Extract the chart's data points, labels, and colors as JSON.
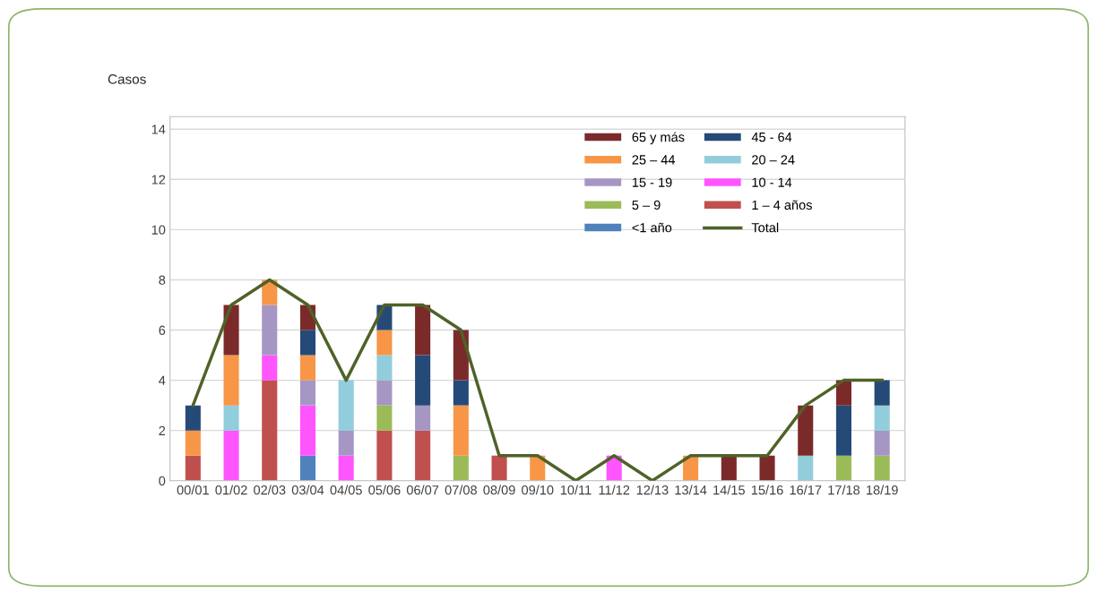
{
  "chart_data": {
    "type": "bar",
    "stacked": true,
    "ylabel": "Casos",
    "categories": [
      "00/01",
      "01/02",
      "02/03",
      "03/04",
      "04/05",
      "05/06",
      "06/07",
      "07/08",
      "08/09",
      "09/10",
      "10/11",
      "11/12",
      "12/13",
      "13/14",
      "14/15",
      "15/16",
      "16/17",
      "17/18",
      "18/19"
    ],
    "series": [
      {
        "name": "<1 año",
        "color": "#4f81bd",
        "values": [
          0,
          0,
          0,
          1,
          0,
          0,
          0,
          0,
          0,
          0,
          0,
          0,
          0,
          0,
          0,
          0,
          0,
          0,
          0
        ]
      },
      {
        "name": "1 – 4 años",
        "color": "#c0504d",
        "values": [
          1,
          0,
          4,
          0,
          0,
          2,
          2,
          0,
          1,
          0,
          0,
          0,
          0,
          0,
          0,
          0,
          0,
          0,
          0
        ]
      },
      {
        "name": "5 – 9",
        "color": "#9bbb59",
        "values": [
          0,
          0,
          0,
          0,
          0,
          1,
          0,
          1,
          0,
          0,
          0,
          0,
          0,
          0,
          0,
          0,
          0,
          1,
          1
        ]
      },
      {
        "name": "10 - 14",
        "color": "#ff55ff",
        "values": [
          0,
          2,
          1,
          2,
          1,
          0,
          0,
          0,
          0,
          0,
          0,
          1,
          0,
          0,
          0,
          0,
          0,
          0,
          0
        ]
      },
      {
        "name": "15 - 19",
        "color": "#a696c4",
        "values": [
          0,
          0,
          2,
          1,
          1,
          1,
          1,
          0,
          0,
          0,
          0,
          0,
          0,
          0,
          0,
          0,
          0,
          0,
          1
        ]
      },
      {
        "name": "20 – 24",
        "color": "#92cddc",
        "values": [
          0,
          1,
          0,
          0,
          2,
          1,
          0,
          0,
          0,
          0,
          0,
          0,
          0,
          0,
          0,
          0,
          1,
          0,
          1
        ]
      },
      {
        "name": "25 – 44",
        "color": "#f79646",
        "values": [
          1,
          2,
          1,
          1,
          0,
          1,
          0,
          2,
          0,
          1,
          0,
          0,
          0,
          1,
          0,
          0,
          0,
          0,
          0
        ]
      },
      {
        "name": "45 - 64",
        "color": "#264a78",
        "values": [
          1,
          0,
          0,
          1,
          0,
          1,
          2,
          1,
          0,
          0,
          0,
          0,
          0,
          0,
          0,
          0,
          0,
          2,
          1
        ]
      },
      {
        "name": "65 y más",
        "color": "#7b2a2a",
        "values": [
          0,
          2,
          0,
          1,
          0,
          0,
          2,
          2,
          0,
          0,
          0,
          0,
          0,
          0,
          1,
          1,
          2,
          1,
          0
        ]
      },
      {
        "name": "Total",
        "type": "line",
        "color": "#4f6228",
        "values": [
          3,
          7,
          8,
          7,
          4,
          7,
          7,
          6,
          1,
          1,
          0,
          1,
          0,
          1,
          1,
          1,
          3,
          4,
          4
        ]
      }
    ],
    "ylim": [
      0,
      14.5
    ],
    "yticks": [
      0,
      2,
      4,
      6,
      8,
      10,
      12,
      14
    ],
    "grid": "y",
    "legend": "top right"
  }
}
